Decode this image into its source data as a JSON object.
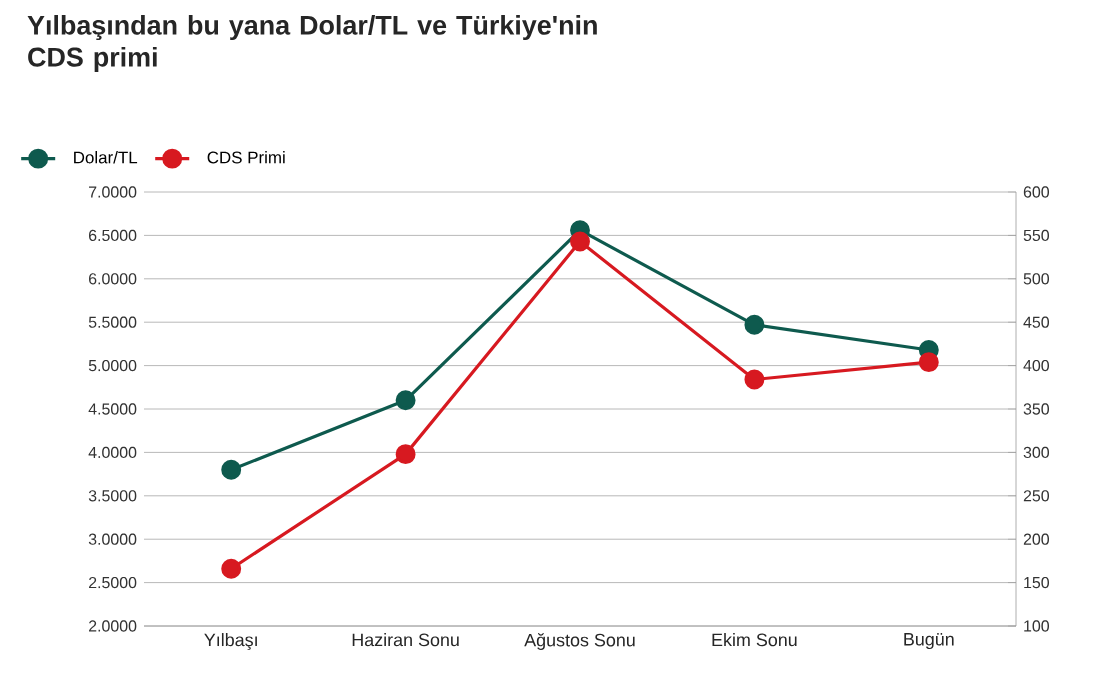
{
  "chart_data": {
    "type": "line",
    "title": "Yılbaşından bu yana Dolar/TL ve Türkiye'nin CDS primi",
    "categories": [
      "Yılbaşı",
      "Haziran Sonu",
      "Ağustos Sonu",
      "Ekim Sonu",
      "Bugün"
    ],
    "series": [
      {
        "name": "Dolar/TL",
        "color": "#0e5a4e",
        "values": [
          3.8,
          4.6,
          6.56,
          5.47,
          5.18
        ]
      },
      {
        "name": "CDS Primi",
        "color": "#d71920",
        "values": [
          166,
          298,
          543,
          384,
          404
        ],
        "axis": "y2"
      }
    ],
    "ylim": [
      2,
      7
    ],
    "yticks": [
      {
        "value": 2,
        "label": "2.0000"
      },
      {
        "value": 2.5,
        "label": "2.5000"
      },
      {
        "value": 3,
        "label": "3.0000"
      },
      {
        "value": 3.5,
        "label": "3.5000"
      },
      {
        "value": 4,
        "label": "4.0000"
      },
      {
        "value": 4.5,
        "label": "4.5000"
      },
      {
        "value": 5,
        "label": "5.0000"
      },
      {
        "value": 5.5,
        "label": "5.5000"
      },
      {
        "value": 6,
        "label": "6.0000"
      },
      {
        "value": 6.5,
        "label": "6.5000"
      },
      {
        "value": 7,
        "label": "7.0000"
      }
    ],
    "y2lim": [
      100,
      600
    ],
    "y2ticks": [
      100,
      150,
      200,
      250,
      300,
      350,
      400,
      450,
      500,
      550,
      600
    ],
    "grid": "y",
    "legend": "top left",
    "marker": "circle",
    "line_style": "solid"
  }
}
